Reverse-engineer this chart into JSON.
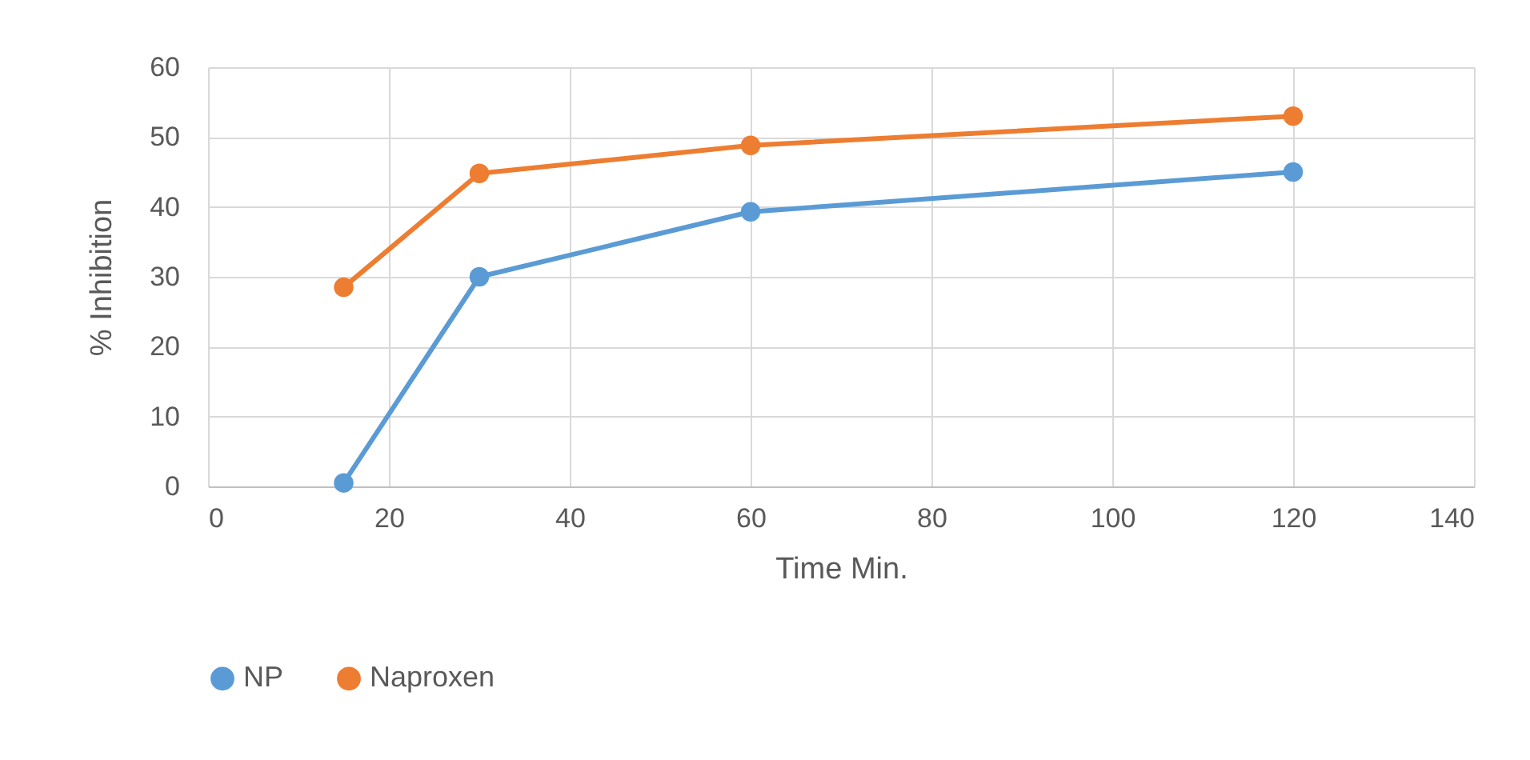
{
  "chart_data": {
    "type": "line",
    "xlabel": "Time Min.",
    "ylabel": "% Inhibition",
    "x": [
      15,
      30,
      60,
      120
    ],
    "series": [
      {
        "name": "NP",
        "color": "#5b9bd5",
        "values": [
          0.5,
          30,
          39.3,
          45
        ]
      },
      {
        "name": "Naproxen",
        "color": "#ed7d31",
        "values": [
          28.5,
          44.8,
          48.8,
          53
        ]
      }
    ],
    "xlim": [
      0,
      140
    ],
    "xticks": [
      0,
      20,
      40,
      60,
      80,
      100,
      120,
      140
    ],
    "ylim": [
      0,
      60
    ],
    "yticks": [
      0,
      10,
      20,
      30,
      40,
      50,
      60
    ],
    "grid": true,
    "legend": "bottom",
    "marker": "circle",
    "line_style": "solid"
  }
}
